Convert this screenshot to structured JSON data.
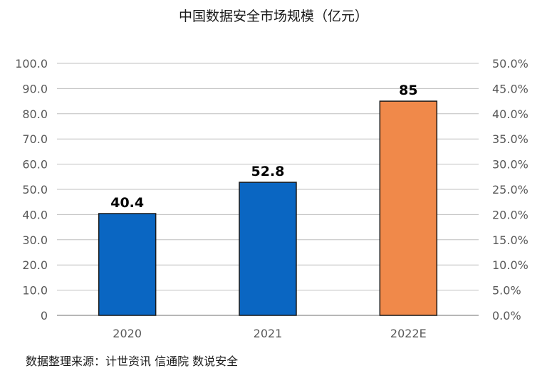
{
  "chart_data": {
    "type": "bar",
    "title": "中国数据安全市场规模（亿元）",
    "categories": [
      "2020",
      "2021",
      "2022E"
    ],
    "values": [
      40.4,
      52.8,
      85
    ],
    "value_labels": [
      "40.4",
      "52.8",
      "85"
    ],
    "bar_colors": [
      "#0a66c2",
      "#0a66c2",
      "#f0894a"
    ],
    "ylim": [
      0,
      100
    ],
    "y_ticks": [
      "0",
      "10.0",
      "20.0",
      "30.0",
      "40.0",
      "50.0",
      "60.0",
      "70.0",
      "80.0",
      "90.0",
      "100.0"
    ],
    "y2lim": [
      0,
      50
    ],
    "y2_ticks": [
      "0.0%",
      "5.0%",
      "10.0%",
      "15.0%",
      "20.0%",
      "25.0%",
      "30.0%",
      "35.0%",
      "40.0%",
      "45.0%",
      "50.0%"
    ],
    "grid": true,
    "legend": "none"
  },
  "source_note": "数据整理来源：计世资讯  信通院  数说安全"
}
